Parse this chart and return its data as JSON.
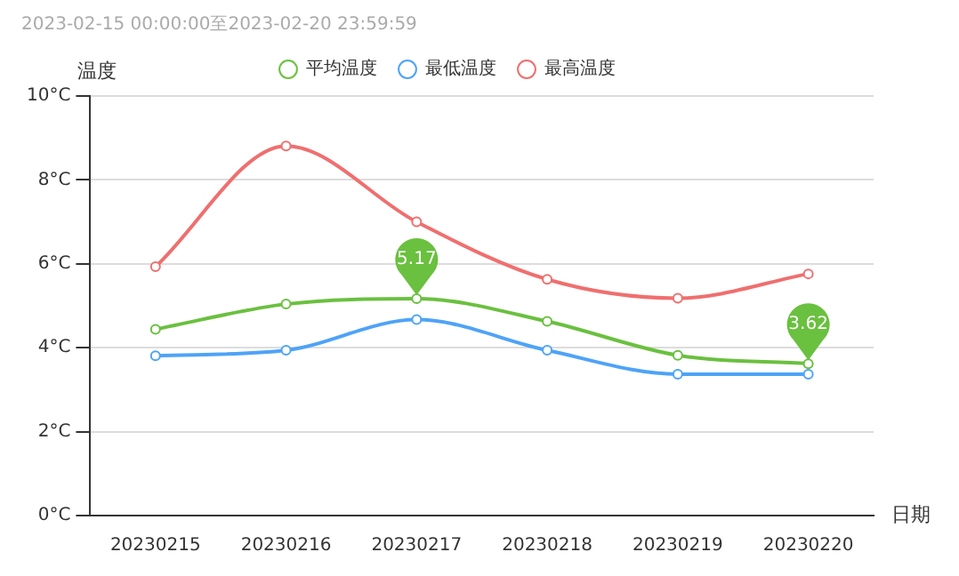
{
  "chart_data": {
    "type": "line",
    "title": "2023-02-15 00:00:00至2023-02-20 23:59:59",
    "xlabel": "日期",
    "ylabel": "温度",
    "categories": [
      "20230215",
      "20230216",
      "20230217",
      "20230218",
      "20230219",
      "20230220"
    ],
    "series": [
      {
        "name": "平均温度",
        "color": "#6ac03f",
        "values": [
          4.44,
          5.04,
          5.17,
          4.63,
          3.82,
          3.62
        ]
      },
      {
        "name": "最低温度",
        "color": "#4ea3f7",
        "values": [
          3.81,
          3.94,
          4.67,
          3.94,
          3.37,
          3.37
        ]
      },
      {
        "name": "最高温度",
        "color": "#ef6f6f",
        "values": [
          5.93,
          8.81,
          7.0,
          5.63,
          5.18,
          5.76
        ]
      }
    ],
    "ylim": [
      0,
      10
    ],
    "yticks": [
      {
        "value": 0,
        "label": "0°C"
      },
      {
        "value": 2,
        "label": "2°C"
      },
      {
        "value": 4,
        "label": "4°C"
      },
      {
        "value": 6,
        "label": "6°C"
      },
      {
        "value": 8,
        "label": "8°C"
      },
      {
        "value": 10,
        "label": "10°C"
      }
    ],
    "annotations": [
      {
        "text": "5.17",
        "x": "20230217",
        "y": 5.17
      },
      {
        "text": "3.62",
        "x": "20230220",
        "y": 3.62
      }
    ],
    "grid": "y",
    "legend": "top",
    "marker": "circle",
    "line_style": "solid"
  }
}
